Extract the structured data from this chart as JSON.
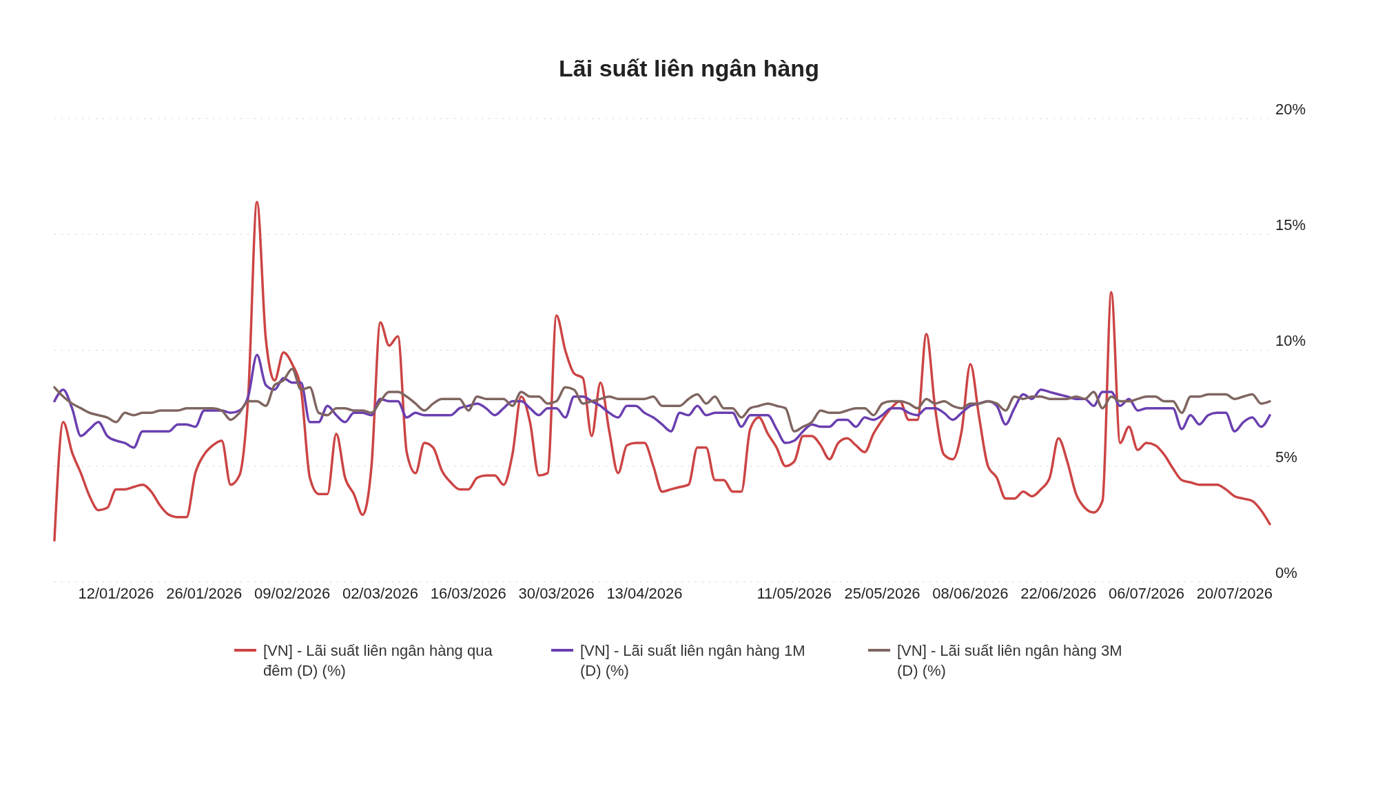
{
  "chart_data": {
    "type": "line",
    "title": "Lãi suất liên ngân hàng",
    "categories": [
      null,
      null,
      null,
      null,
      null,
      null,
      null,
      "12/01/2026",
      null,
      null,
      null,
      null,
      null,
      null,
      null,
      null,
      null,
      "26/01/2026",
      null,
      null,
      null,
      null,
      null,
      null,
      null,
      null,
      null,
      "09/02/2026",
      null,
      null,
      null,
      null,
      null,
      null,
      null,
      null,
      null,
      "02/03/2026",
      null,
      null,
      null,
      null,
      null,
      null,
      null,
      null,
      null,
      "16/03/2026",
      null,
      null,
      null,
      null,
      null,
      null,
      null,
      null,
      null,
      "30/03/2026",
      null,
      null,
      null,
      null,
      null,
      null,
      null,
      null,
      null,
      "13/04/2026",
      null,
      null,
      null,
      null,
      null,
      null,
      null,
      null,
      null,
      null,
      null,
      null,
      null,
      null,
      null,
      null,
      "11/05/2026",
      null,
      null,
      null,
      null,
      null,
      null,
      null,
      null,
      null,
      "25/05/2026",
      null,
      null,
      null,
      null,
      null,
      null,
      null,
      null,
      null,
      "08/06/2026",
      null,
      null,
      null,
      null,
      null,
      null,
      null,
      null,
      null,
      "22/06/2026",
      null,
      null,
      null,
      null,
      null,
      null,
      null,
      null,
      null,
      "06/07/2026",
      null,
      null,
      null,
      null,
      null,
      null,
      null,
      null,
      null,
      "20/07/2026",
      null,
      null,
      null,
      null
    ],
    "series": [
      {
        "name": "[VN] - Lãi suất liên ngân hàng qua đêm (D) (%)",
        "color": "#cc4444",
        "values": [
          1.8,
          6.9,
          5.6,
          4.7,
          3.7,
          3.1,
          3.2,
          4.0,
          4.0,
          4.1,
          4.2,
          3.9,
          3.3,
          2.9,
          2.8,
          2.8,
          4.7,
          5.5,
          5.9,
          6.1,
          4.2,
          4.6,
          8.0,
          16.4,
          10.5,
          8.7,
          9.9,
          9.4,
          8.3,
          4.5,
          3.8,
          3.8,
          6.4,
          4.5,
          3.8,
          2.9,
          5.0,
          11.2,
          10.2,
          10.6,
          5.6,
          4.7,
          6.0,
          5.8,
          4.8,
          4.3,
          4.0,
          4.0,
          4.5,
          4.6,
          4.6,
          4.2,
          5.5,
          8.0,
          6.9,
          4.6,
          4.7,
          11.5,
          10.0,
          9.0,
          8.8,
          6.3,
          8.6,
          6.5,
          4.7,
          5.9,
          6.0,
          6.0,
          5.0,
          3.9,
          4.0,
          4.1,
          4.2,
          5.8,
          5.8,
          4.4,
          4.4,
          3.9,
          3.9,
          6.6,
          7.1,
          6.4,
          5.8,
          5.0,
          5.2,
          6.3,
          6.3,
          5.9,
          5.3,
          6.0,
          6.2,
          5.9,
          5.6,
          6.4,
          7.0,
          7.5,
          7.8,
          7.0,
          7.0,
          10.7,
          7.5,
          5.5,
          5.3,
          6.5,
          9.4,
          7.1,
          5.0,
          4.5,
          3.6,
          3.6,
          3.9,
          3.7,
          4.0,
          4.5,
          6.2,
          5.2,
          3.8,
          3.2,
          3.0,
          3.5,
          12.5,
          6.0,
          6.7,
          5.7,
          6.0,
          5.9,
          5.5,
          4.9,
          4.4,
          4.3,
          4.2,
          4.2,
          4.2,
          4.0,
          3.7,
          3.6,
          3.5,
          3.1,
          2.5
        ]
      },
      {
        "name": "[VN] - Lãi suất liên ngân hàng 1M (D) (%)",
        "color": "#6a3fb0",
        "values": [
          7.8,
          8.3,
          7.5,
          6.3,
          6.6,
          6.9,
          6.3,
          6.1,
          6.0,
          5.8,
          6.5,
          6.5,
          6.5,
          6.5,
          6.8,
          6.8,
          6.7,
          7.4,
          7.4,
          7.4,
          7.3,
          7.4,
          8.0,
          9.8,
          8.5,
          8.3,
          8.8,
          8.6,
          8.6,
          6.9,
          6.9,
          7.6,
          7.2,
          6.9,
          7.3,
          7.3,
          7.2,
          7.9,
          7.8,
          7.8,
          7.1,
          7.3,
          7.2,
          7.2,
          7.2,
          7.2,
          7.5,
          7.6,
          7.7,
          7.5,
          7.2,
          7.5,
          7.8,
          7.8,
          7.5,
          7.2,
          7.5,
          7.5,
          7.1,
          8.0,
          8.0,
          7.8,
          7.6,
          7.3,
          7.1,
          7.6,
          7.6,
          7.3,
          7.1,
          6.8,
          6.5,
          7.3,
          7.2,
          7.6,
          7.2,
          7.3,
          7.3,
          7.3,
          6.7,
          7.2,
          7.2,
          7.2,
          6.6,
          6.0,
          6.1,
          6.5,
          6.8,
          6.7,
          6.7,
          7.0,
          7.0,
          6.7,
          7.1,
          7.0,
          7.2,
          7.5,
          7.5,
          7.3,
          7.2,
          7.5,
          7.5,
          7.3,
          7.0,
          7.3,
          7.6,
          7.7,
          7.8,
          7.6,
          6.8,
          7.5,
          8.1,
          7.9,
          8.3,
          8.2,
          8.1,
          8.0,
          7.9,
          7.9,
          7.6,
          8.2,
          8.2,
          7.6,
          7.9,
          7.4,
          7.5,
          7.5,
          7.5,
          7.5,
          6.6,
          7.2,
          6.8,
          7.2,
          7.3,
          7.3,
          6.5,
          6.9,
          7.1,
          6.7,
          7.2
        ]
      },
      {
        "name": "[VN] - Lãi suất liên ngân hàng 3M (D) (%)",
        "color": "#7f6560",
        "values": [
          8.4,
          8.0,
          7.7,
          7.5,
          7.3,
          7.2,
          7.1,
          6.9,
          7.3,
          7.2,
          7.3,
          7.3,
          7.4,
          7.4,
          7.4,
          7.5,
          7.5,
          7.5,
          7.5,
          7.4,
          7.0,
          7.3,
          7.8,
          7.8,
          7.6,
          8.5,
          8.7,
          9.2,
          8.3,
          8.4,
          7.3,
          7.2,
          7.5,
          7.5,
          7.4,
          7.4,
          7.3,
          7.8,
          8.2,
          8.2,
          8.0,
          7.7,
          7.4,
          7.7,
          7.9,
          7.9,
          7.9,
          7.4,
          8.0,
          7.9,
          7.9,
          7.9,
          7.6,
          8.2,
          8.0,
          8.0,
          7.7,
          7.8,
          8.4,
          8.3,
          7.7,
          7.8,
          7.9,
          8.0,
          7.9,
          7.9,
          7.9,
          7.9,
          8.0,
          7.6,
          7.6,
          7.6,
          7.9,
          8.1,
          7.7,
          8.0,
          7.5,
          7.5,
          7.1,
          7.5,
          7.6,
          7.7,
          7.6,
          7.5,
          6.5,
          6.7,
          6.9,
          7.4,
          7.3,
          7.3,
          7.4,
          7.5,
          7.5,
          7.2,
          7.7,
          7.8,
          7.8,
          7.7,
          7.5,
          7.9,
          7.7,
          7.8,
          7.6,
          7.5,
          7.7,
          7.7,
          7.8,
          7.7,
          7.4,
          8.0,
          7.9,
          8.0,
          8.0,
          7.9,
          7.9,
          7.9,
          8.0,
          7.9,
          8.2,
          7.5,
          8.0,
          7.8,
          7.8,
          7.9,
          8.0,
          8.0,
          7.8,
          7.8,
          7.3,
          8.0,
          8.0,
          8.1,
          8.1,
          8.1,
          7.9,
          8.0,
          8.1,
          7.7,
          7.8
        ]
      }
    ],
    "ylim": [
      0,
      20
    ],
    "yticks": [
      {
        "value": 0,
        "label": "0%"
      },
      {
        "value": 5,
        "label": "5%"
      },
      {
        "value": 10,
        "label": "10%"
      },
      {
        "value": 15,
        "label": "15%"
      },
      {
        "value": 20,
        "label": "20%"
      }
    ],
    "grid": "y",
    "legend": "bottom",
    "marker": "none",
    "line_style": "solid"
  }
}
